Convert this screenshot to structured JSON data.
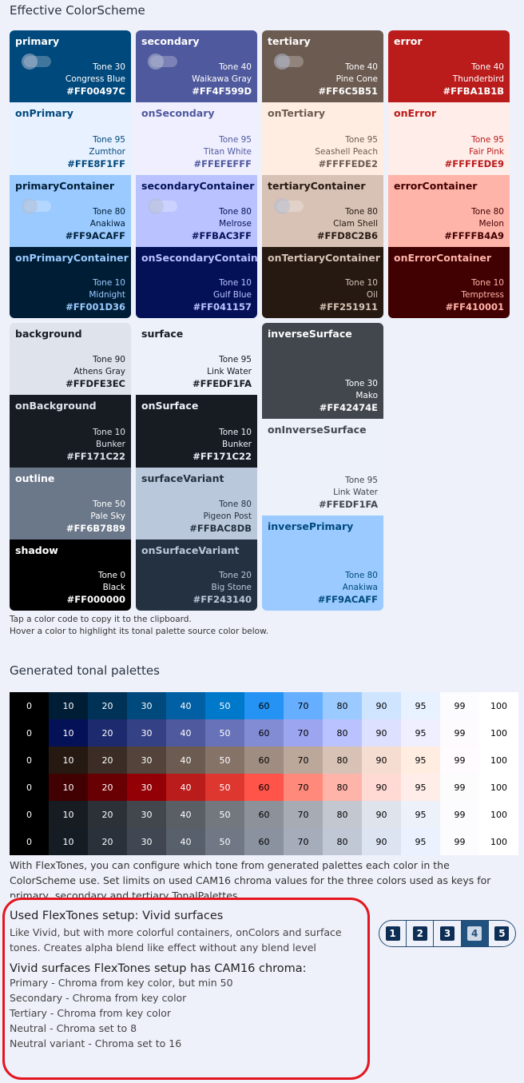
{
  "header": {
    "title": "Effective ColorScheme"
  },
  "columns": [
    [
      {
        "name": "primary",
        "tone": "Tone 30",
        "cname": "Congress Blue",
        "hex": "#FF00497C",
        "bg": "#00497c",
        "fg": "#ffffff",
        "toggle": true
      },
      {
        "name": "onPrimary",
        "tone": "Tone 95",
        "cname": "Zumthor",
        "hex": "#FFE8F1FF",
        "bg": "#e8f1ff",
        "fg": "#00497c",
        "toggle": false
      },
      {
        "name": "primaryContainer",
        "tone": "Tone 80",
        "cname": "Anakiwa",
        "hex": "#FF9ACAFF",
        "bg": "#9acaff",
        "fg": "#001d36",
        "toggle": true
      },
      {
        "name": "onPrimaryContainer",
        "tone": "Tone 10",
        "cname": "Midnight",
        "hex": "#FF001D36",
        "bg": "#001d36",
        "fg": "#9acaff",
        "toggle": false
      }
    ],
    [
      {
        "name": "secondary",
        "tone": "Tone 40",
        "cname": "Waikawa Gray",
        "hex": "#FF4F599D",
        "bg": "#4f599d",
        "fg": "#ffffff",
        "toggle": true
      },
      {
        "name": "onSecondary",
        "tone": "Tone 95",
        "cname": "Titan White",
        "hex": "#FFEFEFFF",
        "bg": "#efefff",
        "fg": "#4f599d",
        "toggle": false
      },
      {
        "name": "secondaryContainer",
        "tone": "Tone 80",
        "cname": "Melrose",
        "hex": "#FFBAC3FF",
        "bg": "#bac3ff",
        "fg": "#041157",
        "toggle": true
      },
      {
        "name": "onSecondaryContainer",
        "tone": "Tone 10",
        "cname": "Gulf Blue",
        "hex": "#FF041157",
        "bg": "#041157",
        "fg": "#bac3ff",
        "toggle": false
      }
    ],
    [
      {
        "name": "tertiary",
        "tone": "Tone 40",
        "cname": "Pine Cone",
        "hex": "#FF6C5B51",
        "bg": "#6c5b51",
        "fg": "#ffffff",
        "toggle": true
      },
      {
        "name": "onTertiary",
        "tone": "Tone 95",
        "cname": "Seashell Peach",
        "hex": "#FFFFEDE2",
        "bg": "#ffede2",
        "fg": "#6c5b51",
        "toggle": false
      },
      {
        "name": "tertiaryContainer",
        "tone": "Tone 80",
        "cname": "Clam Shell",
        "hex": "#FFD8C2B6",
        "bg": "#d8c2b6",
        "fg": "#251911",
        "toggle": true
      },
      {
        "name": "onTertiaryContainer",
        "tone": "Tone 10",
        "cname": "Oil",
        "hex": "#FF251911",
        "bg": "#251911",
        "fg": "#d8c2b6",
        "toggle": false
      }
    ],
    [
      {
        "name": "error",
        "tone": "Tone 40",
        "cname": "Thunderbird",
        "hex": "#FFBA1B1B",
        "bg": "#ba1b1b",
        "fg": "#ffffff",
        "toggle": false
      },
      {
        "name": "onError",
        "tone": "Tone 95",
        "cname": "Fair Pink",
        "hex": "#FFFFEDE9",
        "bg": "#ffede9",
        "fg": "#ba1b1b",
        "toggle": false
      },
      {
        "name": "errorContainer",
        "tone": "Tone 80",
        "cname": "Melon",
        "hex": "#FFFFB4A9",
        "bg": "#ffb4a9",
        "fg": "#410001",
        "toggle": false
      },
      {
        "name": "onErrorContainer",
        "tone": "Tone 10",
        "cname": "Temptress",
        "hex": "#FF410001",
        "bg": "#410001",
        "fg": "#ffb4a9",
        "toggle": false
      }
    ]
  ],
  "columns2": [
    [
      {
        "name": "background",
        "tone": "Tone 90",
        "cname": "Athens Gray",
        "hex": "#FFDFE3EC",
        "bg": "#dfe3ec",
        "fg": "#171c22"
      },
      {
        "name": "onBackground",
        "tone": "Tone 10",
        "cname": "Bunker",
        "hex": "#FF171C22",
        "bg": "#171c22",
        "fg": "#dfe3ec"
      },
      {
        "name": "outline",
        "tone": "Tone 50",
        "cname": "Pale Sky",
        "hex": "#FF6B7889",
        "bg": "#6b7889",
        "fg": "#ffffff"
      },
      {
        "name": "shadow",
        "tone": "Tone 0",
        "cname": "Black",
        "hex": "#FF000000",
        "bg": "#000000",
        "fg": "#ffffff"
      }
    ],
    [
      {
        "name": "surface",
        "tone": "Tone 95",
        "cname": "Link Water",
        "hex": "#FFEDF1FA",
        "bg": "#edf1fa",
        "fg": "#171c22"
      },
      {
        "name": "onSurface",
        "tone": "Tone 10",
        "cname": "Bunker",
        "hex": "#FF171C22",
        "bg": "#171c22",
        "fg": "#edf1fa"
      },
      {
        "name": "surfaceVariant",
        "tone": "Tone 80",
        "cname": "Pigeon Post",
        "hex": "#FFBAC8DB",
        "bg": "#bac8db",
        "fg": "#243140"
      },
      {
        "name": "onSurfaceVariant",
        "tone": "Tone 20",
        "cname": "Big Stone",
        "hex": "#FF243140",
        "bg": "#243140",
        "fg": "#bac8db"
      }
    ],
    [
      {
        "name": "inverseSurface",
        "tone": "Tone 30",
        "cname": "Mako",
        "hex": "#FF42474E",
        "bg": "#42474e",
        "fg": "#ffffff"
      },
      {
        "name": "onInverseSurface",
        "tone": "Tone 95",
        "cname": "Link Water",
        "hex": "#FFEDF1FA",
        "bg": "#edf1fa",
        "fg": "#42474e"
      },
      {
        "name": "inversePrimary",
        "tone": "Tone 80",
        "cname": "Anakiwa",
        "hex": "#FF9ACAFF",
        "bg": "#9acaff",
        "fg": "#00497c"
      }
    ]
  ],
  "hint": {
    "line1": "Tap a color code to copy it to the clipboard.",
    "line2": "Hover a color to highlight its tonal palette source color below."
  },
  "palettes": {
    "title": "Generated tonal palettes",
    "tones": [
      "0",
      "10",
      "20",
      "30",
      "40",
      "50",
      "60",
      "70",
      "80",
      "90",
      "95",
      "99",
      "100"
    ],
    "rows": [
      [
        "#000000",
        "#001d36",
        "#003258",
        "#00497c",
        "#0060a3",
        "#0079cb",
        "#2493f3",
        "#66aeff",
        "#9acaff",
        "#cfe4ff",
        "#e8f1ff",
        "#fcfcff",
        "#ffffff"
      ],
      [
        "#000000",
        "#041157",
        "#1d2a6e",
        "#354185",
        "#4f599d",
        "#6872b8",
        "#828cd4",
        "#9ca6f0",
        "#bac3ff",
        "#dee0ff",
        "#efefff",
        "#fefbff",
        "#ffffff"
      ],
      [
        "#000000",
        "#251911",
        "#3b2d25",
        "#53433a",
        "#6c5b51",
        "#867368",
        "#a08d82",
        "#bca79b",
        "#d8c2b6",
        "#f5ddd1",
        "#ffede2",
        "#fffbff",
        "#ffffff"
      ],
      [
        "#000000",
        "#410001",
        "#680003",
        "#930006",
        "#ba1b1b",
        "#dd3730",
        "#ff5449",
        "#ff897a",
        "#ffb4a9",
        "#ffdad4",
        "#ffede9",
        "#fcfcfc",
        "#ffffff"
      ],
      [
        "#000000",
        "#171c22",
        "#2c3137",
        "#42474e",
        "#5a5f66",
        "#73787f",
        "#8d9199",
        "#a7acb4",
        "#c3c7cf",
        "#dfe3ec",
        "#edf1fa",
        "#fcfcff",
        "#ffffff"
      ],
      [
        "#000000",
        "#161c24",
        "#2a313b",
        "#404753",
        "#58606c",
        "#717885",
        "#8a929f",
        "#a5acba",
        "#c0c8d6",
        "#dce4f2",
        "#ebf1ff",
        "#fcfcff",
        "#ffffff"
      ]
    ]
  },
  "body": "With FlexTones, you can configure which tone from generated palettes each color in the ColorScheme use. Set limits on used CAM16 chroma values for the three colors used as keys for primary, secondary and tertiary TonalPalettes.",
  "setup": {
    "title": "Used FlexTones setup: Vivid surfaces",
    "desc": "Like Vivid, but with more colorful containers, onColors and surface tones. Creates alpha blend like effect without any blend level",
    "chroma_title": "Vivid surfaces FlexTones setup has CAM16 chroma:",
    "lines": [
      "Primary - Chroma from key color, but min 50",
      "Secondary - Chroma from key color",
      "Tertiary - Chroma from key color",
      "Neutral - Chroma set to 8",
      "Neutral variant - Chroma set to 16"
    ]
  },
  "segments": {
    "options": [
      "1",
      "2",
      "3",
      "4",
      "5"
    ],
    "selected": "4"
  }
}
